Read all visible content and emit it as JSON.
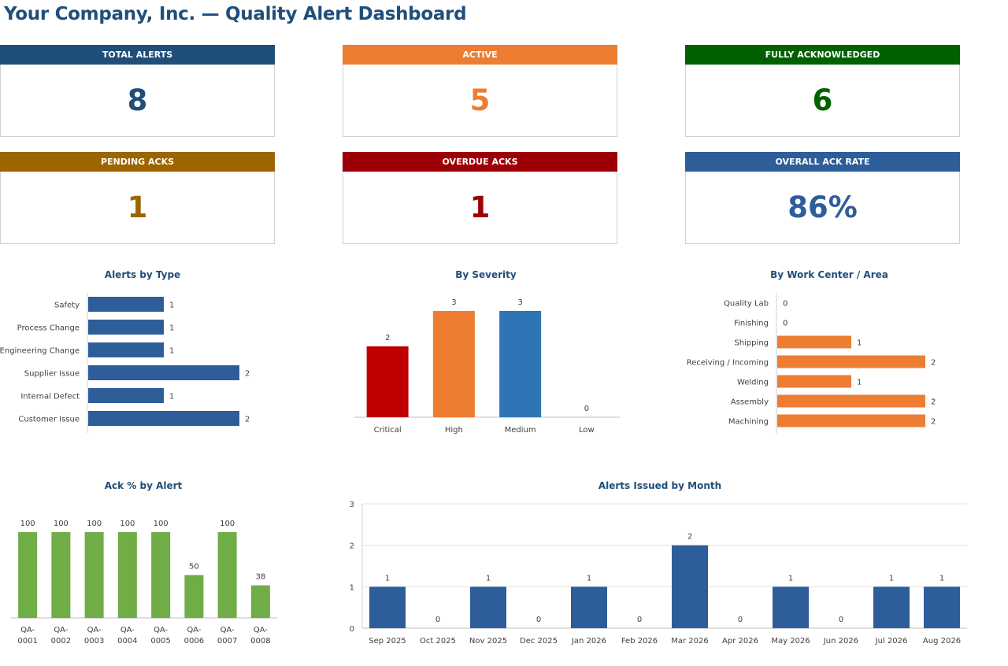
{
  "header": {
    "title": "Your Company, Inc.  —  Quality Alert Dashboard"
  },
  "kpis": [
    {
      "label": "TOTAL ALERTS",
      "value": "8",
      "color": "#1f4e79"
    },
    {
      "label": "ACTIVE",
      "value": "5",
      "color": "#ed7d31"
    },
    {
      "label": "FULLY ACKNOWLEDGED",
      "value": "6",
      "color": "#006100"
    },
    {
      "label": "PENDING ACKS",
      "value": "1",
      "color": "#9c6500"
    },
    {
      "label": "OVERDUE ACKS",
      "value": "1",
      "color": "#9c0006"
    },
    {
      "label": "OVERALL ACK RATE",
      "value": "86%",
      "color": "#2e5e9a"
    }
  ],
  "chart_data": [
    {
      "type": "bar",
      "orientation": "horizontal",
      "title": "Alerts by Type",
      "categories": [
        "Safety",
        "Process Change",
        "Engineering Change",
        "Supplier Issue",
        "Internal Defect",
        "Customer Issue"
      ],
      "values": [
        1,
        1,
        1,
        2,
        1,
        2
      ],
      "colors": [
        "#2e5e9a"
      ],
      "xlim": [
        0,
        2.2
      ]
    },
    {
      "type": "bar",
      "title": "By Severity",
      "categories": [
        "Critical",
        "High",
        "Medium",
        "Low"
      ],
      "values": [
        2,
        3,
        3,
        0
      ],
      "colors": [
        "#c00000",
        "#ed7d31",
        "#2e75b6",
        "#2e75b6"
      ],
      "ylim": [
        0,
        3
      ]
    },
    {
      "type": "bar",
      "orientation": "horizontal",
      "title": "By Work Center / Area",
      "categories": [
        "Quality Lab",
        "Finishing",
        "Shipping",
        "Receiving / Incoming",
        "Welding",
        "Assembly",
        "Machining"
      ],
      "values": [
        0,
        0,
        1,
        2,
        1,
        2,
        2
      ],
      "colors": [
        "#ed7d31"
      ],
      "xlim": [
        0,
        2.2
      ]
    },
    {
      "type": "bar",
      "title": "Ack % by Alert",
      "categories": [
        "QA-0001",
        "QA-0002",
        "QA-0003",
        "QA-0004",
        "QA-0005",
        "QA-0006",
        "QA-0007",
        "QA-0008"
      ],
      "values": [
        100,
        100,
        100,
        100,
        100,
        50,
        100,
        38
      ],
      "colors": [
        "#70ad47"
      ],
      "ylim": [
        0,
        110
      ]
    },
    {
      "type": "bar",
      "title": "Alerts Issued by Month",
      "categories": [
        "Sep 2025",
        "Oct 2025",
        "Nov 2025",
        "Dec 2025",
        "Jan 2026",
        "Feb 2026",
        "Mar 2026",
        "Apr 2026",
        "May 2026",
        "Jun 2026",
        "Jul 2026",
        "Aug 2026"
      ],
      "values": [
        1,
        0,
        1,
        0,
        1,
        0,
        2,
        0,
        1,
        0,
        1,
        1
      ],
      "colors": [
        "#2e5e9a"
      ],
      "ylim": [
        0,
        3
      ],
      "yticks": [
        0,
        1,
        2,
        3
      ],
      "grid": true
    }
  ]
}
